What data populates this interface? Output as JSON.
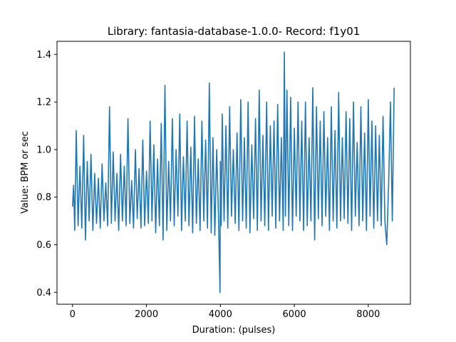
{
  "chart_data": {
    "type": "line",
    "title": "Library: fantasia-database-1.0.0- Record: f1y01",
    "xlabel": "Duration: (pulses)",
    "ylabel": "Value: BPM or sec",
    "xlim": [
      -420,
      9140
    ],
    "ylim": [
      0.35,
      1.455
    ],
    "xticks": [
      0,
      2000,
      4000,
      6000,
      8000
    ],
    "yticks": [
      0.4,
      0.6,
      0.8,
      1.0,
      1.2,
      1.4
    ],
    "xtick_labels": [
      "0",
      "2000",
      "4000",
      "6000",
      "8000"
    ],
    "ytick_labels": [
      "0.4",
      "0.6",
      "0.8",
      "1.0",
      "1.2",
      "1.4"
    ],
    "grid": false,
    "series": [
      {
        "color": "#1f77b4",
        "x": [
          0,
          30,
          60,
          100,
          150,
          200,
          250,
          300,
          350,
          400,
          450,
          500,
          550,
          600,
          650,
          700,
          750,
          800,
          850,
          900,
          950,
          1000,
          1050,
          1100,
          1150,
          1200,
          1250,
          1300,
          1350,
          1400,
          1450,
          1500,
          1550,
          1600,
          1650,
          1700,
          1750,
          1800,
          1850,
          1900,
          1950,
          2000,
          2050,
          2100,
          2150,
          2200,
          2250,
          2300,
          2350,
          2400,
          2450,
          2500,
          2550,
          2600,
          2650,
          2700,
          2750,
          2800,
          2850,
          2900,
          2950,
          3000,
          3050,
          3100,
          3150,
          3200,
          3250,
          3300,
          3350,
          3400,
          3450,
          3500,
          3550,
          3600,
          3650,
          3700,
          3750,
          3800,
          3850,
          3900,
          3950,
          3990,
          4000,
          4020,
          4050,
          4100,
          4150,
          4200,
          4250,
          4300,
          4350,
          4400,
          4450,
          4500,
          4550,
          4600,
          4650,
          4700,
          4750,
          4800,
          4850,
          4900,
          4950,
          5000,
          5050,
          5100,
          5150,
          5200,
          5250,
          5300,
          5350,
          5400,
          5450,
          5500,
          5550,
          5600,
          5650,
          5700,
          5730,
          5760,
          5800,
          5850,
          5900,
          5950,
          6000,
          6050,
          6100,
          6150,
          6200,
          6250,
          6300,
          6350,
          6400,
          6450,
          6500,
          6550,
          6600,
          6650,
          6700,
          6750,
          6800,
          6850,
          6900,
          6950,
          7000,
          7050,
          7100,
          7150,
          7200,
          7250,
          7300,
          7350,
          7400,
          7450,
          7500,
          7550,
          7600,
          7650,
          7700,
          7750,
          7800,
          7850,
          7900,
          7950,
          8000,
          8050,
          8100,
          8150,
          8200,
          8250,
          8300,
          8350,
          8400,
          8450,
          8500,
          8550,
          8600,
          8650,
          8700
        ],
        "values": [
          0.76,
          0.85,
          0.66,
          1.08,
          0.68,
          0.93,
          0.67,
          1.06,
          0.62,
          0.95,
          0.7,
          0.98,
          0.66,
          0.9,
          0.69,
          0.88,
          0.67,
          0.94,
          0.7,
          0.86,
          0.68,
          1.18,
          0.69,
          0.99,
          0.7,
          0.9,
          0.66,
          0.98,
          0.7,
          0.93,
          0.68,
          1.13,
          0.69,
          0.87,
          0.67,
          1.0,
          0.71,
          0.92,
          0.67,
          1.04,
          0.68,
          0.91,
          0.69,
          1.12,
          0.7,
          1.02,
          0.65,
          0.96,
          0.68,
          1.11,
          0.62,
          1.27,
          0.66,
          0.95,
          0.7,
          1.13,
          0.68,
          1.0,
          0.72,
          1.15,
          0.66,
          0.97,
          0.7,
          1.12,
          0.68,
          1.01,
          0.65,
          1.14,
          0.69,
          0.96,
          0.66,
          1.12,
          0.7,
          1.04,
          0.67,
          1.28,
          0.65,
          1.05,
          0.64,
          1.0,
          0.71,
          0.4,
          0.95,
          0.68,
          1.15,
          0.7,
          1.1,
          0.67,
          1.18,
          0.72,
          1.0,
          0.69,
          1.07,
          0.66,
          1.21,
          0.7,
          1.05,
          0.67,
          1.2,
          0.65,
          1.02,
          0.71,
          1.13,
          0.66,
          1.25,
          0.7,
          1.06,
          0.68,
          1.2,
          0.66,
          1.1,
          0.72,
          1.12,
          0.67,
          1.19,
          0.7,
          1.05,
          0.66,
          1.41,
          0.72,
          1.25,
          0.68,
          1.22,
          0.66,
          1.09,
          0.72,
          1.2,
          0.7,
          1.12,
          0.66,
          1.2,
          0.68,
          1.05,
          0.7,
          1.26,
          0.62,
          1.18,
          0.71,
          1.12,
          0.68,
          1.16,
          0.72,
          1.05,
          0.66,
          1.18,
          0.7,
          1.08,
          0.67,
          1.24,
          0.7,
          1.05,
          0.71,
          1.16,
          0.69,
          1.13,
          0.66,
          1.2,
          0.72,
          1.03,
          0.68,
          1.18,
          0.7,
          1.07,
          0.66,
          1.21,
          0.72,
          1.12,
          0.67,
          1.1,
          0.7,
          1.06,
          0.68,
          1.14,
          0.7,
          0.6,
          0.85,
          1.2,
          0.7,
          1.26
        ]
      }
    ]
  }
}
